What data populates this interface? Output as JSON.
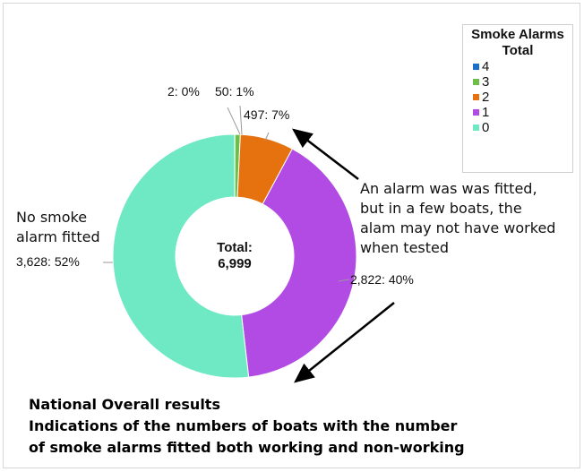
{
  "chart_data": {
    "type": "donut",
    "title": "Smoke Alarms Total",
    "categories": [
      "4",
      "3",
      "2",
      "1",
      "0"
    ],
    "values": [
      2,
      50,
      497,
      2822,
      3628
    ],
    "percent_labels": [
      "0%",
      "1%",
      "7%",
      "40%",
      "52%"
    ],
    "data_labels": [
      "2: 0%",
      "50: 1%",
      "497: 7%",
      "2,822: 40%",
      "3,628: 52%"
    ],
    "colors": [
      "#1a6fc9",
      "#6cc04a",
      "#e6720f",
      "#b24be3",
      "#6fe8c4"
    ],
    "legend": {
      "title": "Smoke Alarms\nTotal",
      "title_line1": "Smoke Alarms",
      "title_line2": "Total",
      "position": "top-right",
      "entries": [
        {
          "label": "4",
          "color": "#1a6fc9"
        },
        {
          "label": "3",
          "color": "#6cc04a"
        },
        {
          "label": "2",
          "color": "#e6720f"
        },
        {
          "label": "1",
          "color": "#b24be3"
        },
        {
          "label": "0",
          "color": "#6fe8c4"
        }
      ]
    },
    "center_label": {
      "line1": "Total:",
      "line2": "6,999"
    },
    "total": 6999
  },
  "annotations": {
    "alarm_fitted": [
      "An alarm was was fitted,",
      "but in a few boats, the",
      "alam may not have worked",
      "when tested"
    ],
    "no_alarm": [
      "No smoke",
      "alarm fitted"
    ]
  },
  "caption": [
    "National Overall results",
    "Indications of the numbers of boats with the number",
    "of smoke alarms fitted both working and non-working"
  ]
}
